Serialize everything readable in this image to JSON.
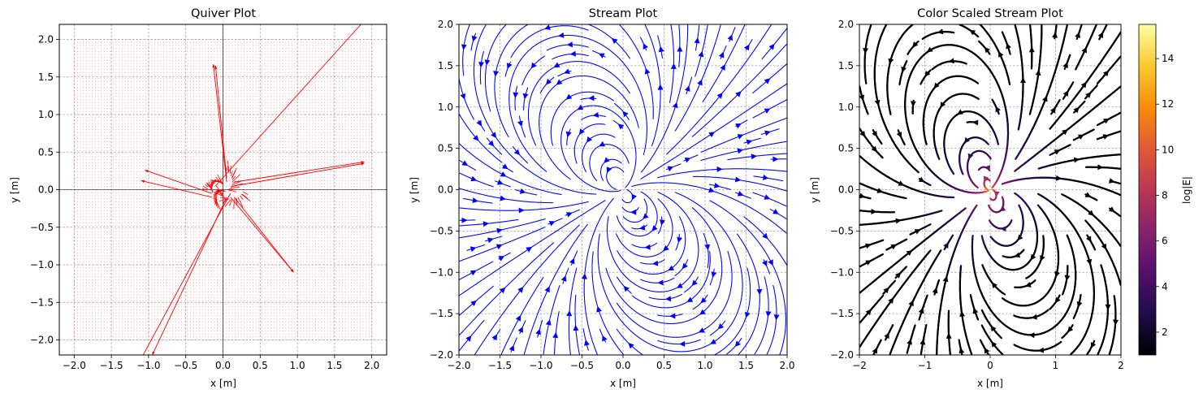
{
  "figure": {
    "background": "#ffffff",
    "grid_color": "#a0a0a0"
  },
  "chart_data": [
    {
      "type": "quiver",
      "title": "Quiver Plot",
      "xlabel": "x [m]",
      "ylabel": "y [m]",
      "xlim": [
        -2.2,
        2.2
      ],
      "ylim": [
        -2.2,
        2.2
      ],
      "xticks": [
        -2.0,
        -1.5,
        -1.0,
        -0.5,
        0.0,
        0.5,
        1.0,
        1.5,
        2.0
      ],
      "yticks": [
        -2.0,
        -1.5,
        -1.0,
        -0.5,
        0.0,
        0.5,
        1.0,
        1.5,
        2.0
      ],
      "xtick_labels": [
        "−2.0",
        "−1.5",
        "−1.0",
        "−0.5",
        "0.0",
        "0.5",
        "1.0",
        "1.5",
        "2.0"
      ],
      "ytick_labels": [
        "−2.0",
        "−1.5",
        "−1.0",
        "−0.5",
        "0.0",
        "0.5",
        "1.0",
        "1.5",
        "2.0"
      ],
      "grid": true,
      "color": "#ff0000",
      "field_extent": [
        -2.0,
        2.0
      ],
      "grid_spacing": 0.04,
      "long_arrows": [
        {
          "x": -0.1,
          "y": 0.05,
          "dx": 2.0,
          "dy": 2.2
        },
        {
          "x": 0.1,
          "y": -0.05,
          "dx": -1.2,
          "dy": -2.2
        },
        {
          "x": 0.05,
          "y": -0.1,
          "dx": -1.0,
          "dy": -2.1
        },
        {
          "x": 0.15,
          "y": 0.1,
          "dx": 1.75,
          "dy": 0.27
        },
        {
          "x": 0.15,
          "y": 0.05,
          "dx": 1.75,
          "dy": 0.3
        },
        {
          "x": -0.15,
          "y": -0.05,
          "dx": -0.9,
          "dy": 0.31
        },
        {
          "x": -0.15,
          "y": -0.1,
          "dx": -0.95,
          "dy": 0.22
        },
        {
          "x": 0.05,
          "y": 0.15,
          "dx": -0.15,
          "dy": 1.5
        },
        {
          "x": 0.05,
          "y": 0.1,
          "dx": -0.18,
          "dy": 1.57
        },
        {
          "x": 0.1,
          "y": -0.1,
          "dx": 0.85,
          "dy": -1.0
        },
        {
          "x": 0.15,
          "y": -0.1,
          "dx": 0.8,
          "dy": -1.0
        }
      ]
    },
    {
      "type": "streamplot",
      "title": "Stream Plot",
      "xlabel": "x [m]",
      "ylabel": "y [m]",
      "xlim": [
        -2.0,
        2.0
      ],
      "ylim": [
        -2.0,
        2.0
      ],
      "xticks": [
        -2.0,
        -1.5,
        -1.0,
        -0.5,
        0.0,
        0.5,
        1.0,
        1.5,
        2.0
      ],
      "yticks": [
        -2.0,
        -1.5,
        -1.0,
        -0.5,
        0.0,
        0.5,
        1.0,
        1.5,
        2.0
      ],
      "xtick_labels": [
        "−2.0",
        "−1.5",
        "−1.0",
        "−0.5",
        "0.0",
        "0.5",
        "1.0",
        "1.5",
        "2.0"
      ],
      "ytick_labels": [
        "−2.0",
        "−1.5",
        "−1.0",
        "−0.5",
        "0.0",
        "0.5",
        "1.0",
        "1.5",
        "2.0"
      ],
      "grid": true,
      "color": "#0000ff",
      "field": "dipole",
      "dipole_angle_deg": 30
    },
    {
      "type": "streamplot",
      "title": "Color Scaled Stream Plot",
      "xlabel": "x [m]",
      "ylabel": "y [m]",
      "xlim": [
        -2,
        2
      ],
      "ylim": [
        -2,
        2
      ],
      "xticks": [
        -2,
        -1,
        0,
        1,
        2
      ],
      "yticks": [
        -2.0,
        -1.5,
        -1.0,
        -0.5,
        0.0,
        0.5,
        1.0,
        1.5,
        2.0
      ],
      "xtick_labels": [
        "−2",
        "−1",
        "0",
        "1",
        "2"
      ],
      "ytick_labels": [
        "−2.0",
        "−1.5",
        "−1.0",
        "−0.5",
        "0.0",
        "0.5",
        "1.0",
        "1.5",
        "2.0"
      ],
      "grid": true,
      "colormap": "inferno",
      "colorbar": {
        "label": "log|E|",
        "range": [
          1.0,
          15.5
        ],
        "ticks": [
          2,
          4,
          6,
          8,
          10,
          12,
          14
        ],
        "tick_labels": [
          "2",
          "4",
          "6",
          "8",
          "10",
          "12",
          "14"
        ]
      },
      "field": "dipole",
      "dipole_angle_deg": 30
    }
  ]
}
